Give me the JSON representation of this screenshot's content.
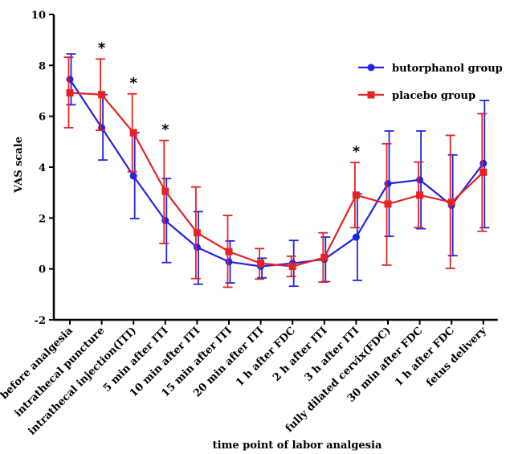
{
  "chart_data": {
    "type": "line",
    "title": "",
    "xlabel": "time point  of labor analgesia",
    "ylabel": "VAS scale",
    "ylim": [
      -2,
      10
    ],
    "yticks": [
      "-2",
      "0",
      "2",
      "4",
      "6",
      "8",
      "10"
    ],
    "categories": [
      "before analgesia",
      "intrathecal puncture",
      "intrathecal injection(ITI)",
      "5 min after ITI",
      "10 min after ITI",
      "15 min after ITI",
      "20 min after ITI",
      "1 h after FDC",
      "2 h after ITI",
      "3 h after ITI",
      "fully dilated cervix(FDC)",
      "30 min after FDC",
      "1 h after FDC",
      "fetus delivery"
    ],
    "series": [
      {
        "name": "butorphanol group",
        "color": "#2323e6",
        "marker": "circle",
        "values": [
          7.45,
          5.55,
          3.65,
          1.9,
          0.85,
          0.28,
          0.1,
          0.22,
          0.38,
          1.25,
          3.35,
          3.5,
          2.5,
          4.15
        ],
        "upper": [
          8.45,
          6.85,
          5.35,
          3.55,
          2.25,
          1.1,
          0.42,
          1.12,
          1.25,
          2.95,
          5.42,
          5.42,
          4.48,
          6.62
        ],
        "lower": [
          6.45,
          4.28,
          1.98,
          0.25,
          -0.6,
          -0.55,
          -0.35,
          -0.68,
          -0.5,
          -0.45,
          1.28,
          1.58,
          0.52,
          1.62
        ]
      },
      {
        "name": "placebo group",
        "color": "#e62323",
        "marker": "square",
        "values": [
          6.92,
          6.85,
          5.35,
          3.05,
          1.42,
          0.68,
          0.22,
          0.1,
          0.45,
          2.9,
          2.55,
          2.9,
          2.62,
          3.8
        ],
        "upper": [
          8.32,
          8.25,
          6.88,
          5.05,
          3.22,
          2.1,
          0.8,
          0.5,
          1.42,
          4.18,
          4.92,
          4.2,
          5.25,
          6.1
        ],
        "lower": [
          5.55,
          5.45,
          3.82,
          1.0,
          -0.38,
          -0.72,
          -0.4,
          -0.3,
          -0.52,
          1.62,
          0.15,
          1.62,
          0.02,
          1.48
        ]
      }
    ],
    "significance": [
      {
        "category_index": 1,
        "label": "*"
      },
      {
        "category_index": 2,
        "label": "*"
      },
      {
        "category_index": 3,
        "label": "*"
      },
      {
        "category_index": 9,
        "label": "*"
      }
    ],
    "legend_position": "top-right",
    "grid": false
  }
}
